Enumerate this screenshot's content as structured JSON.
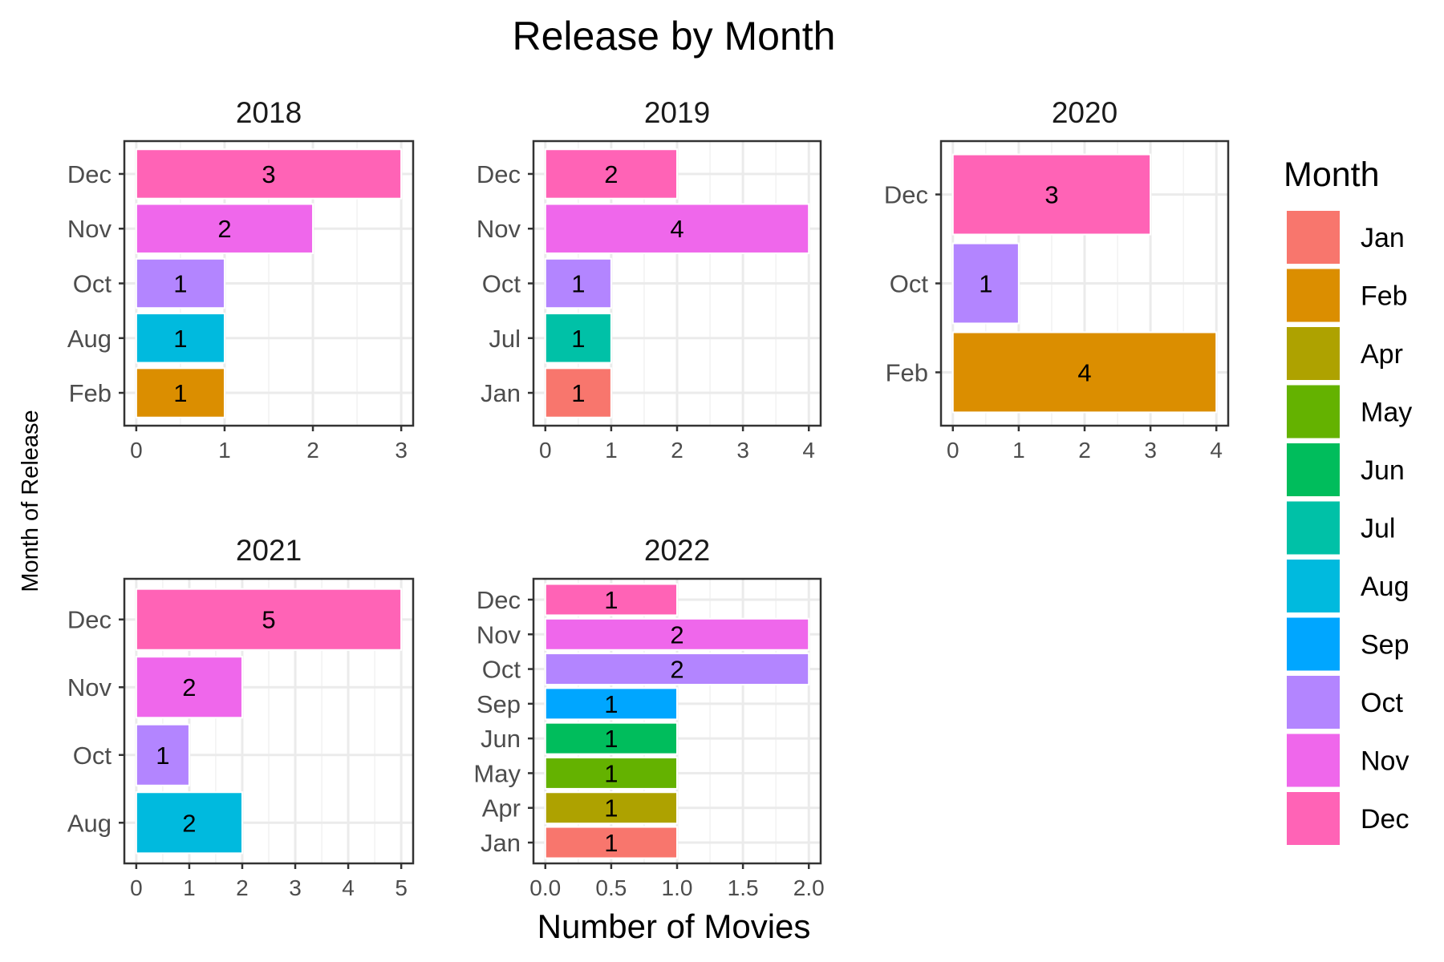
{
  "chart_data": {
    "type": "bar",
    "orientation": "horizontal",
    "title": "Release by Month",
    "xlabel": "Number of Movies",
    "ylabel": "Month of Release",
    "legend": {
      "title": "Month",
      "position": "right",
      "entries": [
        {
          "label": "Jan",
          "color": "#F8766D"
        },
        {
          "label": "Feb",
          "color": "#DB8E00"
        },
        {
          "label": "Apr",
          "color": "#AEA200"
        },
        {
          "label": "May",
          "color": "#64B200"
        },
        {
          "label": "Jun",
          "color": "#00BD5C"
        },
        {
          "label": "Jul",
          "color": "#00C1A7"
        },
        {
          "label": "Aug",
          "color": "#00BADE"
        },
        {
          "label": "Sep",
          "color": "#00A6FF"
        },
        {
          "label": "Oct",
          "color": "#B385FF"
        },
        {
          "label": "Nov",
          "color": "#EF67EB"
        },
        {
          "label": "Dec",
          "color": "#FF63B6"
        }
      ]
    },
    "facets": [
      {
        "title": "2018",
        "categories": [
          "Feb",
          "Aug",
          "Oct",
          "Nov",
          "Dec"
        ],
        "values": [
          1,
          1,
          1,
          2,
          3
        ],
        "xlim": [
          0,
          3
        ],
        "xticks": [
          0,
          1,
          2,
          3
        ],
        "xtick_labels": [
          "0",
          "1",
          "2",
          "3"
        ]
      },
      {
        "title": "2019",
        "categories": [
          "Jan",
          "Jul",
          "Oct",
          "Nov",
          "Dec"
        ],
        "values": [
          1,
          1,
          1,
          4,
          2
        ],
        "xlim": [
          0,
          4
        ],
        "xticks": [
          0,
          1,
          2,
          3,
          4
        ],
        "xtick_labels": [
          "0",
          "1",
          "2",
          "3",
          "4"
        ]
      },
      {
        "title": "2020",
        "categories": [
          "Feb",
          "Oct",
          "Dec"
        ],
        "values": [
          4,
          1,
          3
        ],
        "xlim": [
          0,
          4
        ],
        "xticks": [
          0,
          1,
          2,
          3,
          4
        ],
        "xtick_labels": [
          "0",
          "1",
          "2",
          "3",
          "4"
        ]
      },
      {
        "title": "2021",
        "categories": [
          "Aug",
          "Oct",
          "Nov",
          "Dec"
        ],
        "values": [
          2,
          1,
          2,
          5
        ],
        "xlim": [
          0,
          5
        ],
        "xticks": [
          0,
          1,
          2,
          3,
          4,
          5
        ],
        "xtick_labels": [
          "0",
          "1",
          "2",
          "3",
          "4",
          "5"
        ]
      },
      {
        "title": "2022",
        "categories": [
          "Jan",
          "Apr",
          "May",
          "Jun",
          "Sep",
          "Oct",
          "Nov",
          "Dec"
        ],
        "values": [
          1,
          1,
          1,
          1,
          1,
          2,
          2,
          1
        ],
        "xlim": [
          0,
          2
        ],
        "xticks": [
          0,
          0.5,
          1,
          1.5,
          2
        ],
        "xtick_labels": [
          "0.0",
          "0.5",
          "1.0",
          "1.5",
          "2.0"
        ]
      }
    ]
  }
}
